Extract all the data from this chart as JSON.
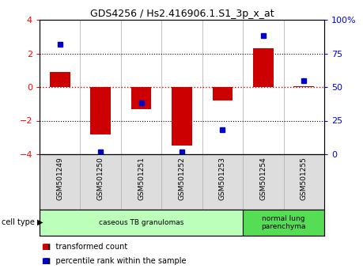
{
  "title": "GDS4256 / Hs2.416906.1.S1_3p_x_at",
  "samples": [
    "GSM501249",
    "GSM501250",
    "GSM501251",
    "GSM501252",
    "GSM501253",
    "GSM501254",
    "GSM501255"
  ],
  "transformed_count": [
    0.9,
    -2.8,
    -1.3,
    -3.5,
    -0.8,
    2.3,
    0.05
  ],
  "percentile_rank": [
    82,
    2,
    38,
    2,
    18,
    88,
    55
  ],
  "ylim_left": [
    -4,
    4
  ],
  "ylim_right": [
    0,
    100
  ],
  "yticks_left": [
    -4,
    -2,
    0,
    2,
    4
  ],
  "yticks_right": [
    0,
    25,
    50,
    75,
    100
  ],
  "ytick_labels_right": [
    "0",
    "25",
    "50",
    "75",
    "100%"
  ],
  "bar_color": "#cc0000",
  "dot_color": "#0000cc",
  "hline_red_color": "#cc0000",
  "hline_black_color": "#000000",
  "cell_type_groups": [
    {
      "label": "caseous TB granulomas",
      "samples": [
        0,
        1,
        2,
        3,
        4
      ],
      "color": "#bbffbb"
    },
    {
      "label": "normal lung\nparenchyma",
      "samples": [
        5,
        6
      ],
      "color": "#55dd55"
    }
  ],
  "legend_items": [
    {
      "label": "transformed count",
      "color": "#cc0000"
    },
    {
      "label": "percentile rank within the sample",
      "color": "#0000cc"
    }
  ],
  "cell_type_label": "cell type",
  "background_color": "#ffffff",
  "label_bg": "#dddddd"
}
